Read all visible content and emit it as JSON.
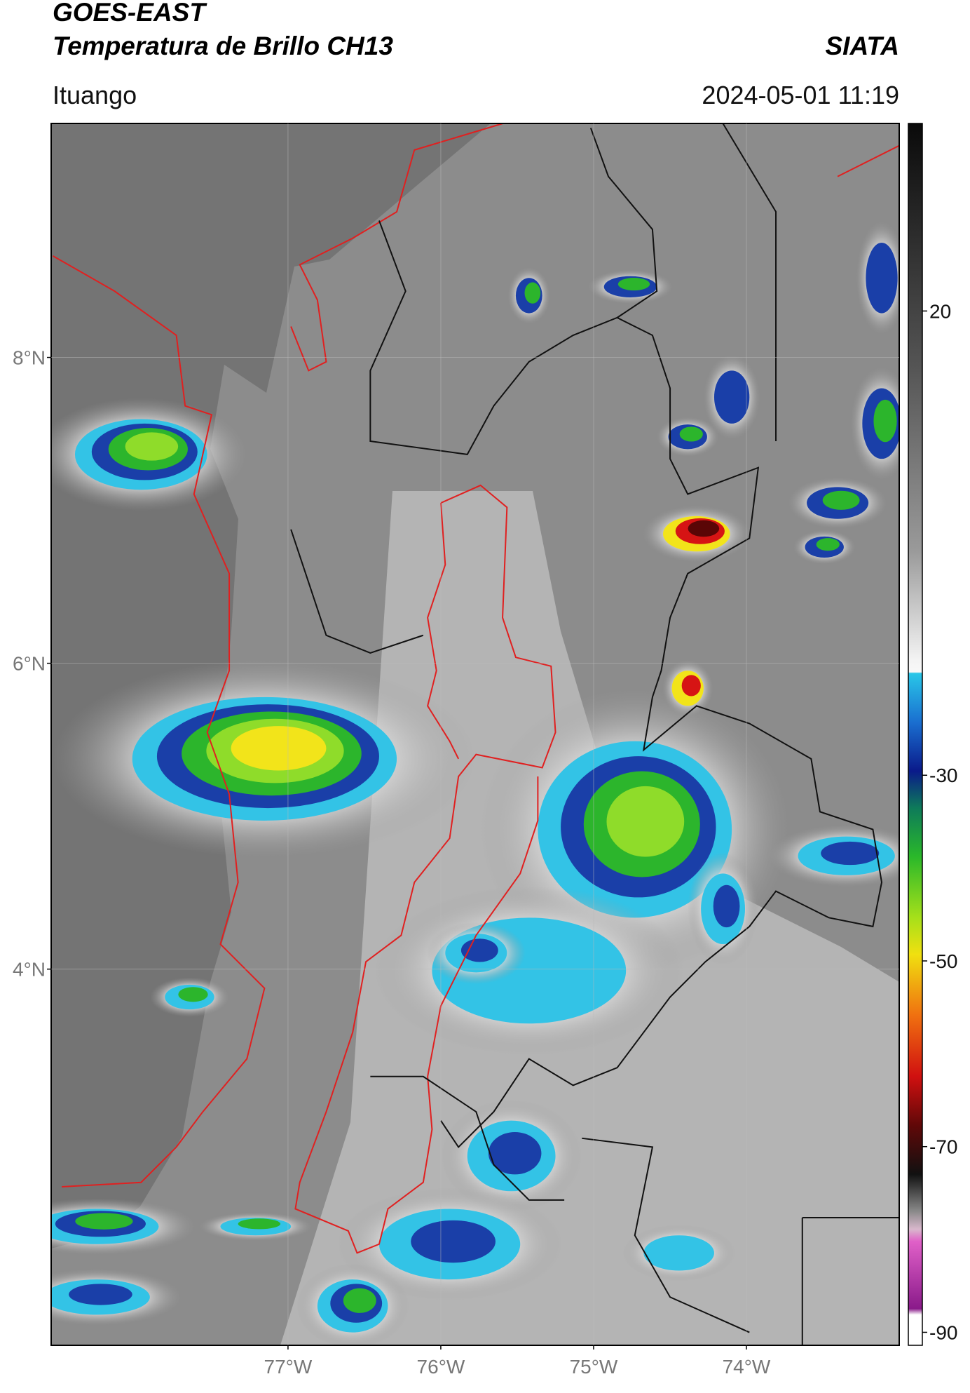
{
  "header": {
    "title": "GOES-EAST",
    "subtitle": "Temperatura de Brillo CH13",
    "source": "SIATA",
    "location": "Ituango",
    "datetime": "2024-05-01 11:19"
  },
  "map": {
    "latlim": [
      1.54,
      9.53
    ],
    "lonlim": [
      -78.55,
      -73.0
    ],
    "lat_ticks": [
      {
        "value": 8,
        "label": "8°N"
      },
      {
        "value": 6,
        "label": "6°N"
      },
      {
        "value": 4,
        "label": "4°N"
      }
    ],
    "lon_ticks": [
      {
        "value": -77,
        "label": "77°W"
      },
      {
        "value": -76,
        "label": "76°W"
      },
      {
        "value": -75,
        "label": "75°W"
      },
      {
        "value": -74,
        "label": "74°W"
      }
    ],
    "grid": true
  },
  "colorbar": {
    "lim": [
      -91.4,
      40.2
    ],
    "ticks": [
      20,
      -30,
      -50,
      -70,
      -90
    ]
  }
}
